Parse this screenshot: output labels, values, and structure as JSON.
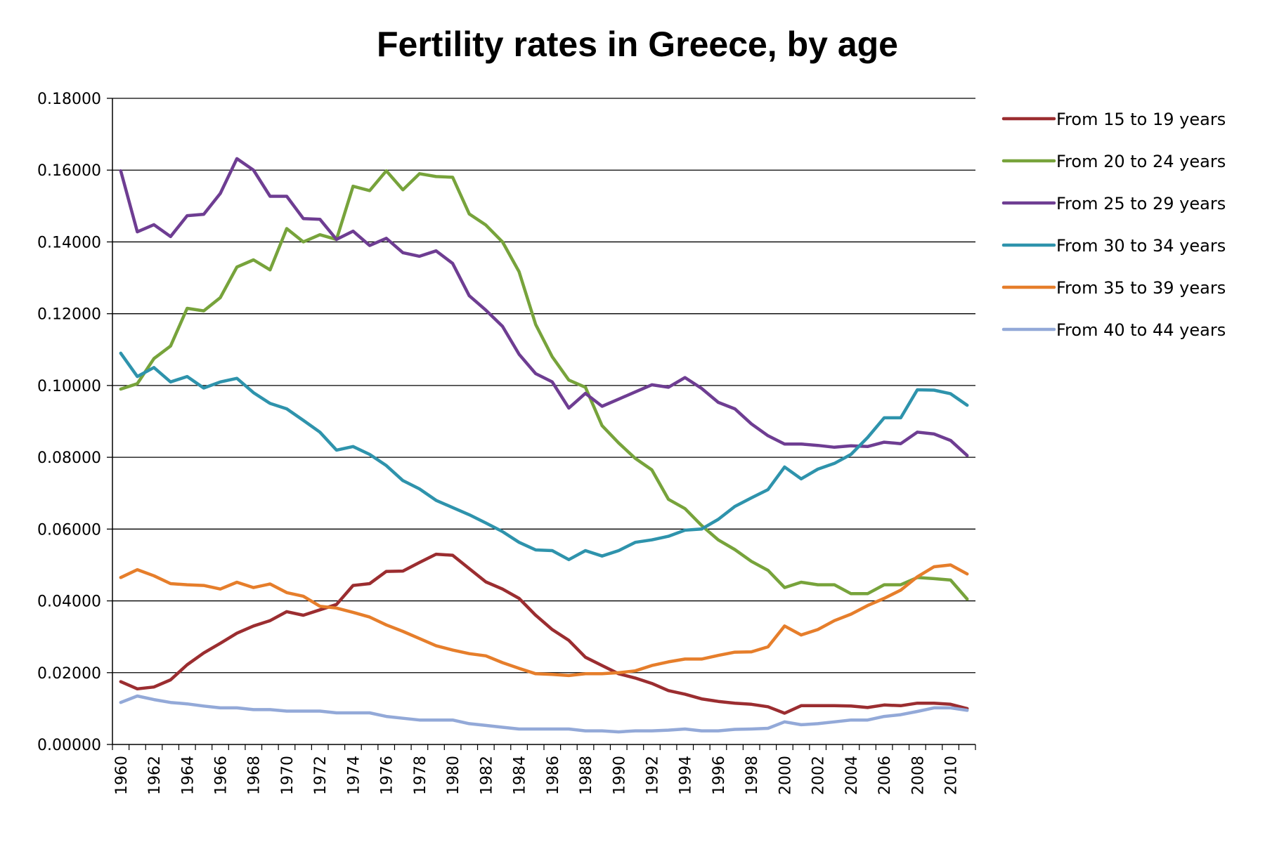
{
  "chart_data": {
    "type": "line",
    "title": "Fertility rates in Greece, by age",
    "xlabel": "",
    "ylabel": "",
    "x": [
      1960,
      1961,
      1962,
      1963,
      1964,
      1965,
      1966,
      1967,
      1968,
      1969,
      1970,
      1971,
      1972,
      1973,
      1974,
      1975,
      1976,
      1977,
      1978,
      1979,
      1980,
      1981,
      1982,
      1983,
      1984,
      1985,
      1986,
      1987,
      1988,
      1989,
      1990,
      1991,
      1992,
      1993,
      1994,
      1995,
      1996,
      1997,
      1998,
      1999,
      2000,
      2001,
      2002,
      2003,
      2004,
      2005,
      2006,
      2007,
      2008,
      2009,
      2010,
      2011
    ],
    "x_tick_labels": [
      "1960",
      "1962",
      "1964",
      "1966",
      "1968",
      "1970",
      "1972",
      "1974",
      "1976",
      "1978",
      "1980",
      "1982",
      "1984",
      "1986",
      "1988",
      "1990",
      "1992",
      "1994",
      "1996",
      "1998",
      "2000",
      "2002",
      "2004",
      "2006",
      "2008",
      "2010"
    ],
    "ylim": [
      0,
      0.18
    ],
    "y_ticks": [
      0,
      0.02,
      0.04,
      0.06,
      0.08,
      0.1,
      0.12,
      0.14,
      0.16,
      0.18
    ],
    "y_tick_labels": [
      "0.00000",
      "0.02000",
      "0.04000",
      "0.06000",
      "0.08000",
      "0.10000",
      "0.12000",
      "0.14000",
      "0.16000",
      "0.18000"
    ],
    "grid": true,
    "legend_position": "right",
    "series": [
      {
        "name": "From 15 to 19 years",
        "color": "#9B2D30",
        "values": [
          0.0175,
          0.0155,
          0.016,
          0.018,
          0.0222,
          0.0255,
          0.0282,
          0.031,
          0.033,
          0.0345,
          0.037,
          0.036,
          0.0375,
          0.039,
          0.0443,
          0.0448,
          0.0482,
          0.0483,
          0.0507,
          0.053,
          0.0527,
          0.049,
          0.0453,
          0.0433,
          0.0407,
          0.036,
          0.032,
          0.029,
          0.0243,
          0.022,
          0.0197,
          0.0185,
          0.017,
          0.015,
          0.014,
          0.0127,
          0.012,
          0.0115,
          0.0112,
          0.0105,
          0.0087,
          0.0108,
          0.0108,
          0.0108,
          0.0107,
          0.0103,
          0.011,
          0.0108,
          0.0115,
          0.0115,
          0.0112,
          0.01
        ]
      },
      {
        "name": "From 20 to 24 years",
        "color": "#77A33B",
        "values": [
          0.099,
          0.1005,
          0.1075,
          0.111,
          0.1215,
          0.1208,
          0.1245,
          0.133,
          0.135,
          0.1322,
          0.1437,
          0.14,
          0.142,
          0.1407,
          0.1555,
          0.1543,
          0.1598,
          0.1545,
          0.159,
          0.1582,
          0.158,
          0.1478,
          0.1447,
          0.14,
          0.1317,
          0.117,
          0.108,
          0.1015,
          0.0995,
          0.0888,
          0.084,
          0.0797,
          0.0765,
          0.0683,
          0.0657,
          0.061,
          0.057,
          0.0543,
          0.051,
          0.0485,
          0.0437,
          0.0452,
          0.0445,
          0.0445,
          0.042,
          0.042,
          0.0445,
          0.0445,
          0.0465,
          0.0462,
          0.0458,
          0.0405
        ]
      },
      {
        "name": "From 25 to 29 years",
        "color": "#6E3D92",
        "values": [
          0.1598,
          0.1428,
          0.1448,
          0.1415,
          0.1473,
          0.1477,
          0.1535,
          0.1632,
          0.16,
          0.1527,
          0.1527,
          0.1465,
          0.1463,
          0.1407,
          0.143,
          0.139,
          0.141,
          0.137,
          0.136,
          0.1375,
          0.134,
          0.125,
          0.121,
          0.1165,
          0.1087,
          0.1033,
          0.101,
          0.0937,
          0.0978,
          0.0942,
          0.0962,
          0.0982,
          0.1002,
          0.0995,
          0.1022,
          0.0992,
          0.0953,
          0.0935,
          0.0893,
          0.086,
          0.0837,
          0.0837,
          0.0833,
          0.0828,
          0.0832,
          0.083,
          0.0842,
          0.0838,
          0.087,
          0.0865,
          0.0847,
          0.0805
        ]
      },
      {
        "name": "From 30 to 34 years",
        "color": "#2E93AC",
        "values": [
          0.109,
          0.1025,
          0.105,
          0.101,
          0.1025,
          0.0993,
          0.101,
          0.102,
          0.098,
          0.095,
          0.0935,
          0.0903,
          0.087,
          0.082,
          0.083,
          0.0808,
          0.0777,
          0.0735,
          0.0712,
          0.068,
          0.066,
          0.064,
          0.0617,
          0.0593,
          0.0563,
          0.0542,
          0.054,
          0.0515,
          0.054,
          0.0525,
          0.054,
          0.0563,
          0.057,
          0.058,
          0.0597,
          0.06,
          0.0627,
          0.0663,
          0.0687,
          0.071,
          0.0773,
          0.074,
          0.0767,
          0.0783,
          0.0808,
          0.0855,
          0.091,
          0.091,
          0.0988,
          0.0987,
          0.0977,
          0.0945
        ]
      },
      {
        "name": "From 35 to 39 years",
        "color": "#E67E2B",
        "values": [
          0.0465,
          0.0487,
          0.047,
          0.0448,
          0.0445,
          0.0443,
          0.0433,
          0.0452,
          0.0437,
          0.0447,
          0.0423,
          0.0413,
          0.0385,
          0.038,
          0.0368,
          0.0355,
          0.0333,
          0.0315,
          0.0295,
          0.0275,
          0.0263,
          0.0253,
          0.0247,
          0.0228,
          0.0212,
          0.0197,
          0.0195,
          0.0192,
          0.0197,
          0.0197,
          0.02,
          0.0205,
          0.022,
          0.023,
          0.0238,
          0.0238,
          0.0248,
          0.0257,
          0.0258,
          0.0272,
          0.033,
          0.0305,
          0.032,
          0.0345,
          0.0363,
          0.0387,
          0.0407,
          0.043,
          0.0467,
          0.0495,
          0.05,
          0.0475
        ]
      },
      {
        "name": "From 40 to 44 years",
        "color": "#93A9D8",
        "values": [
          0.0117,
          0.0135,
          0.0125,
          0.0117,
          0.0113,
          0.0107,
          0.0102,
          0.0102,
          0.0097,
          0.0097,
          0.0093,
          0.0093,
          0.0093,
          0.0088,
          0.0088,
          0.0088,
          0.0078,
          0.0073,
          0.0068,
          0.0068,
          0.0068,
          0.0058,
          0.0053,
          0.0048,
          0.0043,
          0.0043,
          0.0043,
          0.0043,
          0.0038,
          0.0038,
          0.0035,
          0.0038,
          0.0038,
          0.004,
          0.0043,
          0.0038,
          0.0038,
          0.0042,
          0.0043,
          0.0045,
          0.0063,
          0.0055,
          0.0058,
          0.0063,
          0.0068,
          0.0068,
          0.0078,
          0.0083,
          0.0092,
          0.0102,
          0.0102,
          0.0095
        ]
      }
    ]
  }
}
